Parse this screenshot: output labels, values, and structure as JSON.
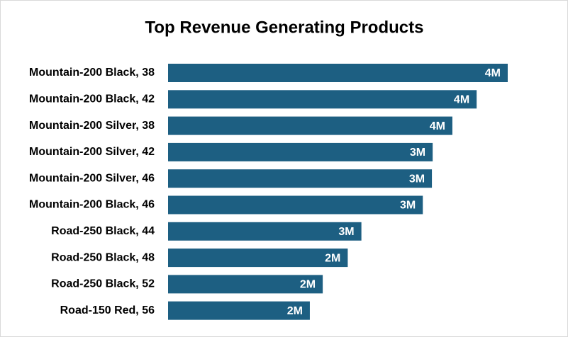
{
  "chart_data": {
    "type": "bar",
    "orientation": "horizontal",
    "title": "Top Revenue Generating Products",
    "categories": [
      "Mountain-200 Black, 38",
      "Mountain-200 Black, 42",
      "Mountain-200 Silver, 38",
      "Mountain-200 Silver, 42",
      "Mountain-200 Silver, 46",
      "Mountain-200 Black, 46",
      "Road-250 Black, 44",
      "Road-250 Black, 48",
      "Road-250 Black, 52",
      "Road-150 Red, 56"
    ],
    "values": [
      4.48,
      4.07,
      3.75,
      3.49,
      3.48,
      3.36,
      2.55,
      2.37,
      2.04,
      1.87
    ],
    "value_labels": [
      "4M",
      "4M",
      "4M",
      "3M",
      "3M",
      "3M",
      "3M",
      "2M",
      "2M",
      "2M"
    ],
    "color": "#1d5f82"
  }
}
